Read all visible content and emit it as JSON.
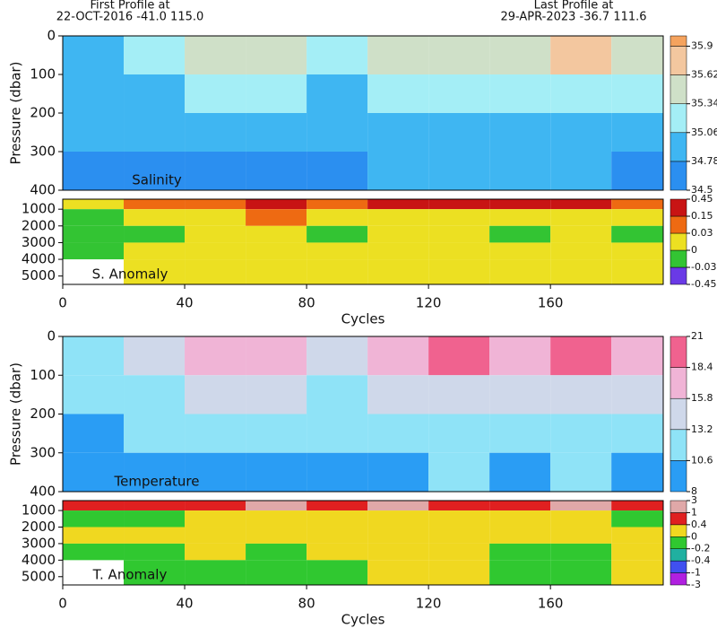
{
  "header": {
    "first_label": "First Profile at",
    "first_info": "22-OCT-2016   -41.0 115.0",
    "last_label": "Last Profile at",
    "last_info": "29-APR-2023   -36.7 111.6"
  },
  "chart_data": [
    {
      "type": "heatmap",
      "label": "Salinity",
      "ylabel": "Pressure (dbar)",
      "x_bins": [
        0,
        20,
        40,
        60,
        80,
        100,
        120,
        140,
        160,
        180,
        197
      ],
      "y_bins": [
        0,
        100,
        200,
        300,
        400
      ],
      "values": [
        [
          35.0,
          35.1,
          35.6,
          35.4,
          35.2,
          35.5,
          35.6,
          35.6,
          35.7,
          35.5
        ],
        [
          34.9,
          35.0,
          35.2,
          35.1,
          35.0,
          35.2,
          35.2,
          35.3,
          35.3,
          35.2
        ],
        [
          34.8,
          34.8,
          34.9,
          34.9,
          34.8,
          34.9,
          34.9,
          35.0,
          35.0,
          34.9
        ],
        [
          34.7,
          34.7,
          34.7,
          34.7,
          34.7,
          34.8,
          34.8,
          34.8,
          34.8,
          34.7
        ]
      ],
      "xlim": [
        0,
        197
      ],
      "ylim": [
        0,
        400
      ],
      "yticks": [
        0,
        100,
        200,
        300,
        400
      ],
      "y_inverted": true,
      "colorbar": {
        "lim": [
          34.5,
          36.0
        ],
        "ticks": [
          34.5,
          34.78,
          35.06,
          35.34,
          35.62,
          35.9
        ],
        "colors": [
          "#2b8ff0",
          "#3fb6f2",
          "#a4eef6",
          "#cfe0c8",
          "#f3c79f",
          "#f5a35e"
        ]
      }
    },
    {
      "type": "heatmap",
      "label": "S. Anomaly",
      "xlabel": "Cycles",
      "x_bins": [
        0,
        20,
        40,
        60,
        80,
        100,
        120,
        140,
        160,
        180,
        197
      ],
      "y_bins": [
        400,
        1000,
        2000,
        3000,
        4000,
        5500
      ],
      "values": [
        [
          0.02,
          0.05,
          0.05,
          0.2,
          0.1,
          0.2,
          0.2,
          0.2,
          0.2,
          0.05
        ],
        [
          -0.01,
          0.01,
          0.02,
          0.05,
          0.02,
          0.02,
          0.02,
          0.02,
          0.02,
          0.01
        ],
        [
          -0.01,
          -0.01,
          0.01,
          0.01,
          -0.01,
          0.01,
          0.01,
          -0.01,
          0.01,
          -0.01
        ],
        [
          -0.01,
          0.01,
          0.01,
          0.01,
          0.01,
          0.01,
          0.01,
          0.01,
          0.01,
          0.01
        ],
        [
          null,
          0.01,
          0.01,
          0.01,
          0.01,
          0.01,
          0.01,
          0.01,
          0.01,
          0.01
        ]
      ],
      "xlim": [
        0,
        197
      ],
      "xticks": [
        0,
        40,
        80,
        120,
        160
      ],
      "ylim": [
        400,
        5500
      ],
      "yticks": [
        1000,
        2000,
        3000,
        4000,
        5000
      ],
      "y_inverted": true,
      "colorbar": {
        "even": true,
        "ticks": [
          -0.45,
          -0.03,
          0,
          0.03,
          0.15,
          0.45
        ],
        "colors": [
          "#6a3ae6",
          "#33c433",
          "#ece022",
          "#ee6a12",
          "#c81414"
        ]
      }
    },
    {
      "type": "heatmap",
      "label": "Temperature",
      "ylabel": "Pressure (dbar)",
      "x_bins": [
        0,
        20,
        40,
        60,
        80,
        100,
        120,
        140,
        160,
        180,
        197
      ],
      "y_bins": [
        0,
        100,
        200,
        300,
        400
      ],
      "values": [
        [
          12.5,
          14,
          17,
          16,
          15,
          17.5,
          18.5,
          18,
          19,
          17
        ],
        [
          11.5,
          12,
          14,
          13.5,
          13,
          14.5,
          15,
          14.5,
          15.5,
          14
        ],
        [
          10.5,
          11,
          12,
          11.5,
          11.5,
          12,
          12.5,
          12,
          12.5,
          11.5
        ],
        [
          9.5,
          10,
          10.5,
          10,
          10,
          10.5,
          11,
          10.5,
          11,
          10
        ]
      ],
      "xlim": [
        0,
        197
      ],
      "ylim": [
        0,
        400
      ],
      "yticks": [
        0,
        100,
        200,
        300,
        400
      ],
      "y_inverted": true,
      "colorbar": {
        "lim": [
          8,
          21
        ],
        "ticks": [
          8,
          10.6,
          13.2,
          15.8,
          18.4,
          21
        ],
        "colors": [
          "#2a9df4",
          "#8fe3f7",
          "#cfd8ea",
          "#f0b4d6",
          "#f0628f"
        ]
      }
    },
    {
      "type": "heatmap",
      "label": "T. Anomaly",
      "xlabel": "Cycles",
      "x_bins": [
        0,
        20,
        40,
        60,
        80,
        100,
        120,
        140,
        160,
        180,
        197
      ],
      "y_bins": [
        400,
        1000,
        2000,
        3000,
        4000,
        5500
      ],
      "values": [
        [
          0.5,
          0.5,
          0.5,
          1.5,
          0.5,
          1.5,
          0.5,
          0.5,
          1.5,
          0.5
        ],
        [
          -0.1,
          -0.1,
          0.1,
          0.2,
          0.1,
          0.2,
          0.1,
          0.1,
          0.2,
          -0.1
        ],
        [
          0.1,
          0.2,
          0.2,
          0.2,
          0.2,
          0.2,
          0.2,
          0.2,
          0.2,
          0.1
        ],
        [
          -0.1,
          -0.1,
          0.1,
          -0.1,
          0.1,
          0.1,
          0.1,
          -0.1,
          -0.1,
          0.1
        ],
        [
          null,
          -0.1,
          -0.1,
          -0.1,
          -0.1,
          0.1,
          0.1,
          -0.1,
          -0.1,
          0.1
        ]
      ],
      "xlim": [
        0,
        197
      ],
      "xticks": [
        0,
        40,
        80,
        120,
        160
      ],
      "ylim": [
        400,
        5500
      ],
      "yticks": [
        1000,
        2000,
        3000,
        4000,
        5000
      ],
      "y_inverted": true,
      "colorbar": {
        "even": true,
        "ticks": [
          -3,
          -1,
          -0.4,
          -0.2,
          0,
          0.4,
          1,
          3
        ],
        "colors": [
          "#b020e0",
          "#4050f0",
          "#20b0a0",
          "#30c830",
          "#f0d820",
          "#e02020",
          "#e0a8a8"
        ]
      }
    }
  ]
}
